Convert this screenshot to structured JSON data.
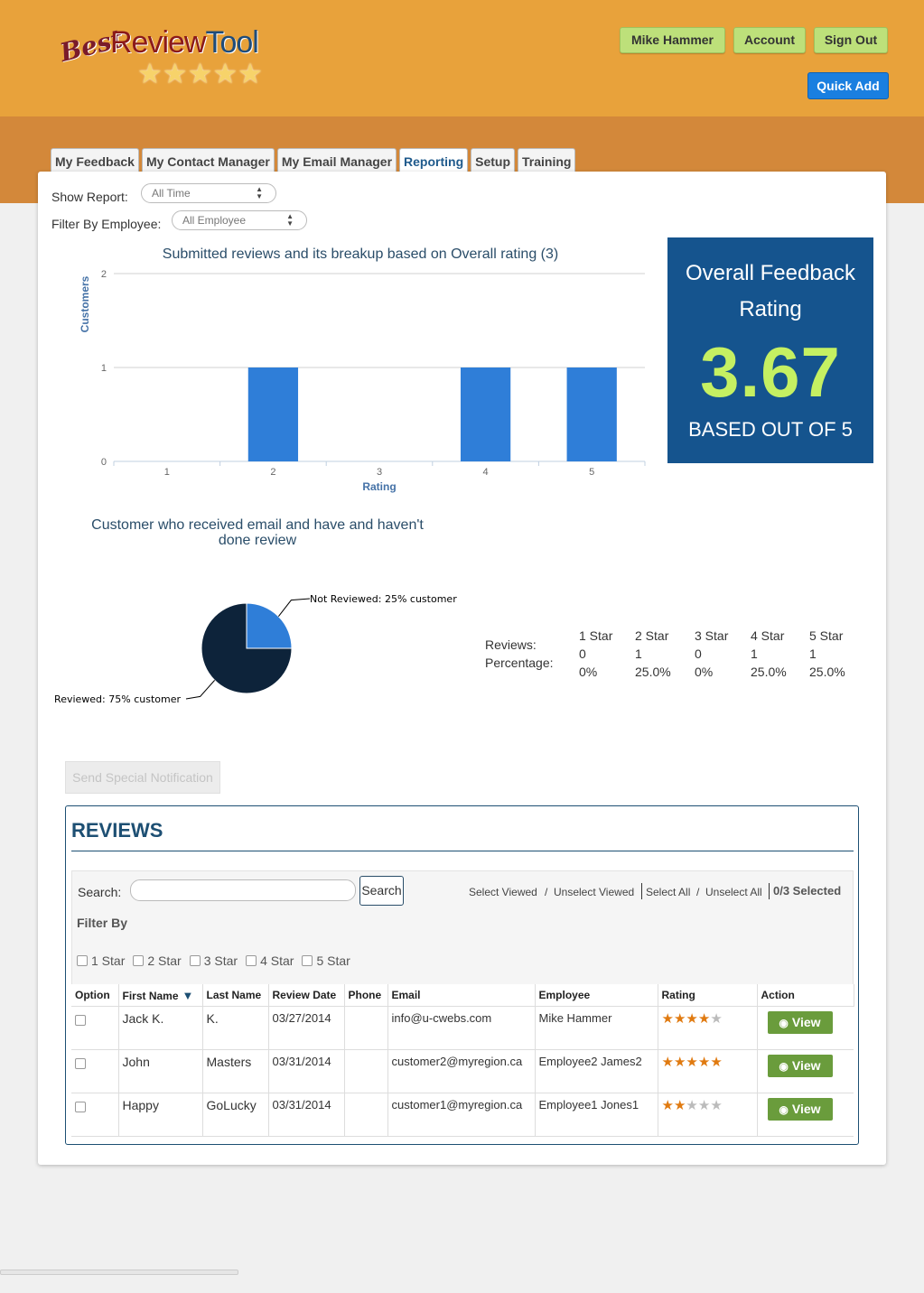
{
  "header": {
    "logo": {
      "best": "Best",
      "review": "Review",
      "tool": "Tool",
      "stars": "★★★★★"
    },
    "user_name": "Mike Hammer",
    "account_label": "Account",
    "signout_label": "Sign Out",
    "quickadd_label": "Quick Add"
  },
  "tabs": [
    {
      "label": "My Feedback"
    },
    {
      "label": "My Contact Manager"
    },
    {
      "label": "My Email Manager"
    },
    {
      "label": "Reporting",
      "active": true
    },
    {
      "label": "Setup"
    },
    {
      "label": "Training"
    }
  ],
  "filters": {
    "show_report_label": "Show Report:",
    "show_report_value": "All Time",
    "employee_label": "Filter By Employee:",
    "employee_value": "All Employee"
  },
  "chart_data": [
    {
      "type": "bar",
      "title": "Submitted reviews and its breakup based on Overall rating (3)",
      "xlabel": "Rating",
      "ylabel": "Customers",
      "categories": [
        "1",
        "2",
        "3",
        "4",
        "5"
      ],
      "values": [
        0,
        1,
        0,
        1,
        1
      ],
      "ylim": [
        0,
        2
      ],
      "yticks": [
        "0",
        "1",
        "2"
      ],
      "color": "#2f7ed8"
    },
    {
      "type": "pie",
      "title": "Customer who received email and have and haven't done review",
      "slices": [
        {
          "label": "Not Reviewed: 25% customer",
          "value": 25,
          "color": "#2f7ed8"
        },
        {
          "label": "Reviewed: 75% customer",
          "value": 75,
          "color": "#0d233a"
        }
      ]
    }
  ],
  "rating_box": {
    "title": "Overall Feedback Rating",
    "value": "3.67",
    "subtitle": "BASED OUT OF 5"
  },
  "stats": {
    "reviews_label": "Reviews:",
    "percentage_label": "Percentage:",
    "columns": [
      {
        "label": "1 Star",
        "reviews": "0",
        "percentage": "0%"
      },
      {
        "label": "2 Star",
        "reviews": "1",
        "percentage": "25.0%"
      },
      {
        "label": "3 Star",
        "reviews": "0",
        "percentage": "0%"
      },
      {
        "label": "4 Star",
        "reviews": "1",
        "percentage": "25.0%"
      },
      {
        "label": "5 Star",
        "reviews": "1",
        "percentage": "25.0%"
      }
    ]
  },
  "notify_label": "Send Special Notification",
  "reviews": {
    "title": "REVIEWS",
    "search_label": "Search:",
    "search_value": "",
    "search_button": "Search",
    "select_viewed": "Select Viewed",
    "sep": "/",
    "unselect_viewed": "Unselect Viewed",
    "select_all": "Select All",
    "unselect_all": "Unselect All",
    "selected_count": "0/3 Selected",
    "filter_by_label": "Filter By",
    "star_filters": [
      "1 Star",
      "2 Star",
      "3 Star",
      "4 Star",
      "5 Star"
    ],
    "columns": [
      "Option",
      "First Name",
      "Last Name",
      "Review Date",
      "Phone",
      "Email",
      "Employee",
      "Rating",
      "Action"
    ],
    "view_label": "View",
    "rows": [
      {
        "first": "Jack K.",
        "last": "K.",
        "date": "03/27/2014",
        "phone": "",
        "email": "info@u-cwebs.com",
        "employee": "Mike Hammer",
        "rating": 4
      },
      {
        "first": "John",
        "last": "Masters",
        "date": "03/31/2014",
        "phone": "",
        "email": "customer2@myregion.ca",
        "employee": "Employee2 James2",
        "rating": 5
      },
      {
        "first": "Happy",
        "last": "GoLucky",
        "date": "03/31/2014",
        "phone": "",
        "email": "customer1@myregion.ca",
        "employee": "Employee1 Jones1",
        "rating": 2
      }
    ]
  }
}
